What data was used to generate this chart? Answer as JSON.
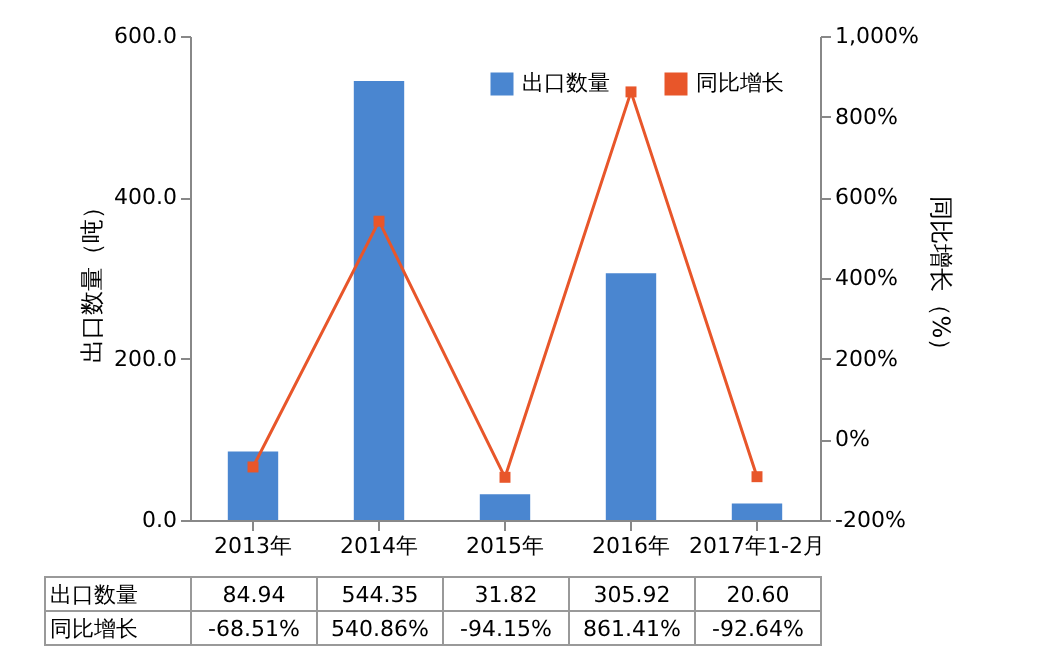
{
  "chart_data": {
    "type": "bar",
    "xlabel": null,
    "ylabel": "出口数量（吨）",
    "y2label": "同比增长（%）",
    "categories": [
      "2013年",
      "2014年",
      "2015年",
      "2016年",
      "2017年1-2月"
    ],
    "series": [
      {
        "name": "出口数量",
        "color": "#4a86d0",
        "values": [
          84.94,
          544.35,
          31.82,
          305.92,
          20.6
        ],
        "value_labels": [
          "84.94",
          "544.35",
          "31.82",
          "305.92",
          "20.60"
        ]
      },
      {
        "name": "同比增长",
        "type": "line",
        "axis": "y2",
        "color": "#e8562a",
        "marker": "square",
        "line_style": "solid",
        "values": [
          -68.51,
          540.86,
          -94.15,
          861.41,
          -92.64
        ],
        "value_labels": [
          "-68.51%",
          "540.86%",
          "-94.15%",
          "861.41%",
          "-92.64%"
        ]
      }
    ],
    "ylim": [
      0,
      600
    ],
    "yticks": [
      {
        "value": 0,
        "label": "0.0"
      },
      {
        "value": 200,
        "label": "200.0"
      },
      {
        "value": 400,
        "label": "400.0"
      },
      {
        "value": 600,
        "label": "600.0"
      }
    ],
    "y2lim": [
      -200,
      1000
    ],
    "y2ticks": [
      {
        "value": -200,
        "label": "-200%"
      },
      {
        "value": 0,
        "label": "0%"
      },
      {
        "value": 200,
        "label": "200%"
      },
      {
        "value": 400,
        "label": "400%"
      },
      {
        "value": 600,
        "label": "600%"
      },
      {
        "value": 800,
        "label": "800%"
      },
      {
        "value": 1000,
        "label": "1,000%"
      }
    ],
    "legend": "top right",
    "grid": false
  }
}
